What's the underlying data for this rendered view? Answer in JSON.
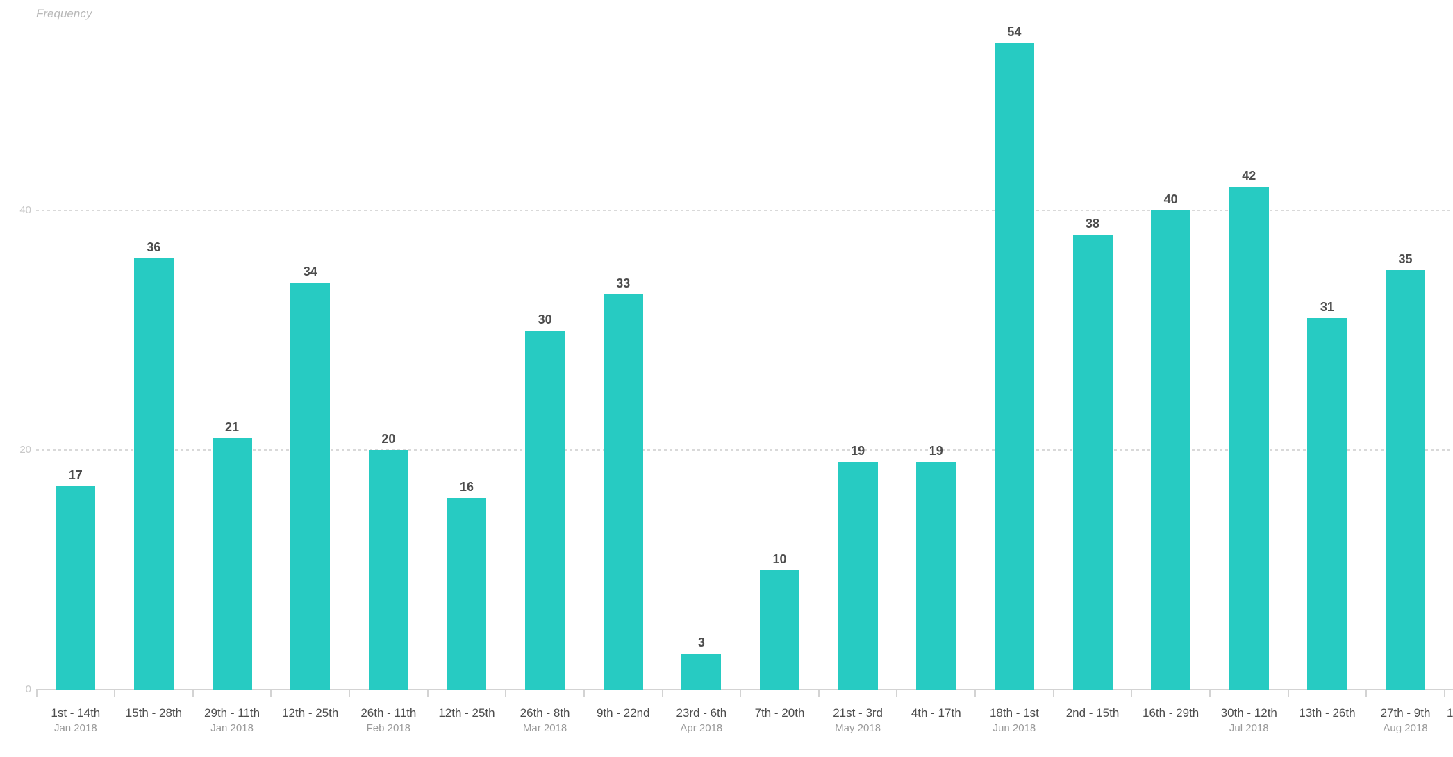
{
  "chart_data": {
    "type": "bar",
    "title": "",
    "ylabel": "Frequency",
    "xlabel": "",
    "categories": [
      "1st - 14th",
      "15th - 28th",
      "29th - 11th",
      "12th - 25th",
      "26th - 11th",
      "12th - 25th",
      "26th - 8th",
      "9th - 22nd",
      "23rd - 6th",
      "7th - 20th",
      "21st - 3rd",
      "4th - 17th",
      "18th - 1st",
      "2nd - 15th",
      "16th - 29th",
      "30th - 12th",
      "13th - 26th",
      "27th - 9th"
    ],
    "month_labels": [
      "Jan 2018",
      "",
      "Jan 2018",
      "",
      "Feb 2018",
      "",
      "Mar 2018",
      "",
      "Apr 2018",
      "",
      "May 2018",
      "",
      "Jun 2018",
      "",
      "",
      "Jul 2018",
      "",
      "Aug 2018"
    ],
    "values": [
      17,
      36,
      21,
      34,
      20,
      16,
      30,
      33,
      3,
      10,
      19,
      19,
      54,
      38,
      40,
      42,
      31,
      35
    ],
    "y_ticks": [
      0,
      20,
      40
    ],
    "ylim": [
      0,
      57.6
    ],
    "grid": "horizontal-dashed",
    "legend": "none",
    "data_labels": "above-bars",
    "clipped_next_label": "1",
    "colors": {
      "bar": "#27cbc2",
      "value_label": "#4d4d4d",
      "x_label": "#4d4d4d",
      "month_label": "#9a9a9a",
      "y_tick_label": "#c8c8c8",
      "y_title": "#b8b8b8",
      "gridline": "#d9d9d9",
      "axis": "#d3d3d3",
      "background": "#ffffff"
    }
  }
}
